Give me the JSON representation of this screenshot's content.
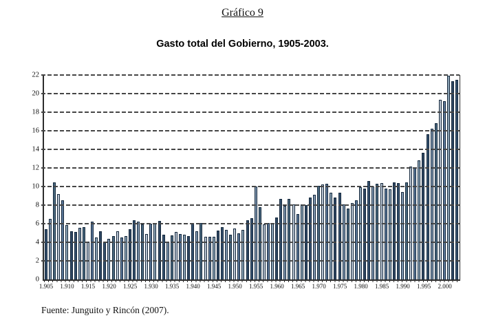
{
  "title": "Gráfico 9",
  "subtitle": "Gasto total del Gobierno, 1905-2003.",
  "source": "Fuente: Junguito y Rincón (2007).",
  "chart_data": {
    "type": "bar",
    "title": "Gasto total del Gobierno, 1905-2003.",
    "xlabel": "",
    "ylabel": "",
    "x_start_year": 1905,
    "x_end_year": 2003,
    "ylim": [
      0,
      22
    ],
    "ytick_step": 2,
    "ytick_labels": [
      "0",
      "2",
      "4",
      "6",
      "8",
      "10",
      "12",
      "14",
      "16",
      "18",
      "20",
      "22"
    ],
    "xtick_labels": [
      "1.905",
      "1.910",
      "1.915",
      "1.920",
      "1.925",
      "1.930",
      "1.935",
      "1.940",
      "1.945",
      "1.950",
      "1.955",
      "1.960",
      "1.965",
      "1.970",
      "1.975",
      "1.980",
      "1.985",
      "1.990",
      "1.995",
      "2.000"
    ],
    "grid": "horizontal-dashed",
    "legend_position": "none",
    "values": [
      5.4,
      6.5,
      10.45,
      9.2,
      8.55,
      5.85,
      5.2,
      5.1,
      5.55,
      5.6,
      4.05,
      6.2,
      4.5,
      5.15,
      4.05,
      4.4,
      4.7,
      5.2,
      4.5,
      4.65,
      5.4,
      6.4,
      6.2,
      5.9,
      4.9,
      6.0,
      6.05,
      6.3,
      4.8,
      4.1,
      4.75,
      5.1,
      4.9,
      4.8,
      4.7,
      6.1,
      5.2,
      6.05,
      4.6,
      4.6,
      4.6,
      5.25,
      5.6,
      5.35,
      4.8,
      5.5,
      5.0,
      5.35,
      6.35,
      6.6,
      10.0,
      7.8,
      5.9,
      6.1,
      6.0,
      6.7,
      8.65,
      7.9,
      8.65,
      8.1,
      7.05,
      8.1,
      8.0,
      8.85,
      9.1,
      10.05,
      10.25,
      10.3,
      9.3,
      8.8,
      9.3,
      8.05,
      7.6,
      8.2,
      8.5,
      9.95,
      9.75,
      10.6,
      10.0,
      10.3,
      10.4,
      9.75,
      9.7,
      10.45,
      10.4,
      9.4,
      10.45,
      12.15,
      12.1,
      12.8,
      13.6,
      15.6,
      16.25,
      16.8,
      19.3,
      19.2,
      21.95,
      21.3,
      21.5
    ],
    "colors": {
      "bar_palette": [
        "#34506e",
        "#7e95ae",
        "#49687e",
        "#b9c4d2",
        "#5a7698",
        "#8ba3b5",
        "#2e4662"
      ],
      "bar_border": "#15283c",
      "axis": "#2b2b2b",
      "gridline": "#454545",
      "background": "#ffffff"
    }
  }
}
